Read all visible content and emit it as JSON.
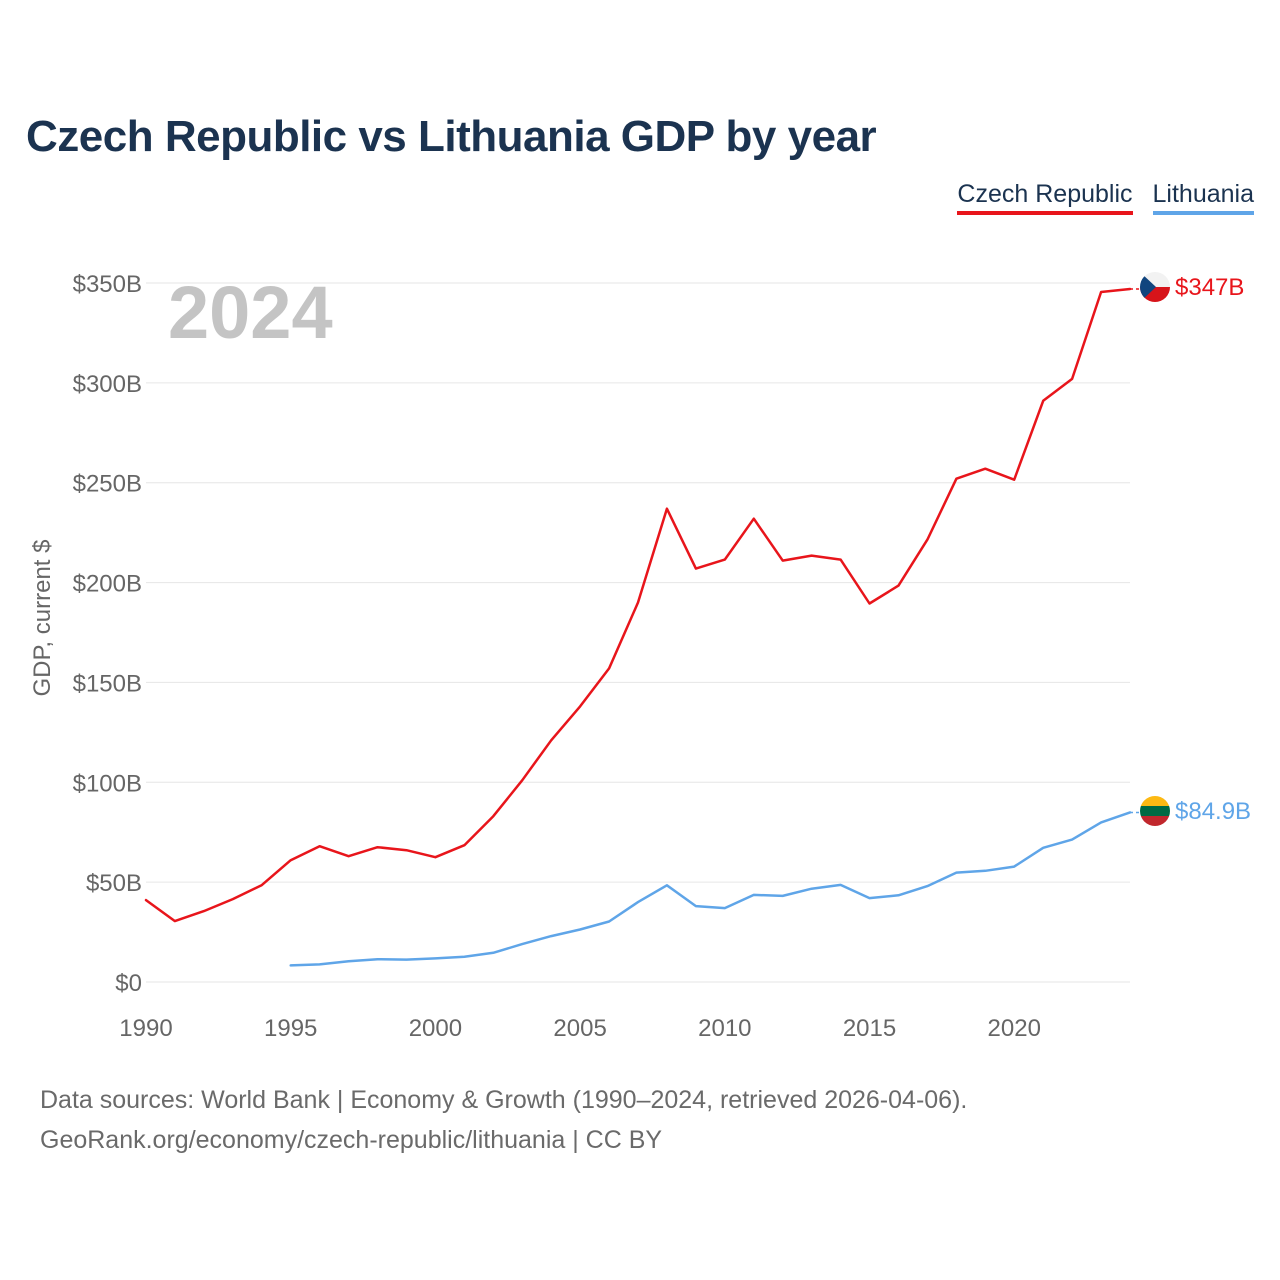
{
  "title": "Czech Republic vs Lithuania GDP by year",
  "legend": {
    "czech": "Czech Republic",
    "lithuania": "Lithuania"
  },
  "year_watermark": "2024",
  "footer": {
    "line1": "Data sources: World Bank | Economy & Growth (1990–2024, retrieved 2026-04-06).",
    "line2": "GeoRank.org/economy/czech-republic/lithuania | CC BY"
  },
  "colors": {
    "czech": "#e8151b",
    "lithuania": "#5fa5e8",
    "title": "#1b3350",
    "grid": "#e6e6e6",
    "tick": "#666666",
    "watermark": "#c4c4c4"
  },
  "icons": {
    "czech_flag": "czech-flag-icon",
    "lithuania_flag": "lithuania-flag-icon"
  },
  "chart_data": {
    "type": "line",
    "title": "Czech Republic vs Lithuania GDP by year",
    "xlabel": "",
    "ylabel": "GDP, current $",
    "xlim": [
      1990,
      2024
    ],
    "ylim": [
      0,
      350
    ],
    "x_ticks": [
      1990,
      1995,
      2000,
      2005,
      2010,
      2015,
      2020
    ],
    "x_tick_labels": [
      "1990",
      "1995",
      "2000",
      "2005",
      "2010",
      "2015",
      "2020"
    ],
    "y_ticks": [
      0,
      50,
      100,
      150,
      200,
      250,
      300,
      350
    ],
    "y_tick_labels": [
      "$0",
      "$50B",
      "$100B",
      "$150B",
      "$200B",
      "$250B",
      "$300B",
      "$350B"
    ],
    "grid": true,
    "legend_position": "top-right",
    "series": [
      {
        "name": "Czech Republic",
        "end_label": "$347B",
        "x": [
          1990,
          1991,
          1992,
          1993,
          1994,
          1995,
          1996,
          1997,
          1998,
          1999,
          2000,
          2001,
          2002,
          2003,
          2004,
          2005,
          2006,
          2007,
          2008,
          2009,
          2010,
          2011,
          2012,
          2013,
          2014,
          2015,
          2016,
          2017,
          2018,
          2019,
          2020,
          2021,
          2022,
          2023,
          2024
        ],
        "values": [
          41,
          30.5,
          35.5,
          41.5,
          48.5,
          61,
          68,
          63,
          67.5,
          66,
          62.5,
          68.5,
          83,
          101,
          121,
          138,
          157,
          190,
          237,
          207,
          211.5,
          232,
          211,
          213.5,
          211.5,
          189.5,
          198.5,
          221.5,
          252,
          257,
          251.5,
          291,
          302,
          345.5,
          347
        ]
      },
      {
        "name": "Lithuania",
        "end_label": "$84.9B",
        "x": [
          1995,
          1996,
          1997,
          1998,
          1999,
          2000,
          2001,
          2002,
          2003,
          2004,
          2005,
          2006,
          2007,
          2008,
          2009,
          2010,
          2011,
          2012,
          2013,
          2014,
          2015,
          2016,
          2017,
          2018,
          2019,
          2020,
          2021,
          2022,
          2023,
          2024
        ],
        "values": [
          8.3,
          8.8,
          10.4,
          11.4,
          11.2,
          11.8,
          12.6,
          14.6,
          19,
          23,
          26.3,
          30.3,
          40,
          48.4,
          38,
          37,
          43.6,
          43.1,
          46.7,
          48.6,
          42,
          43.4,
          48,
          54.8,
          55.7,
          57.8,
          67.2,
          71.3,
          79.9,
          84.9
        ]
      }
    ]
  }
}
